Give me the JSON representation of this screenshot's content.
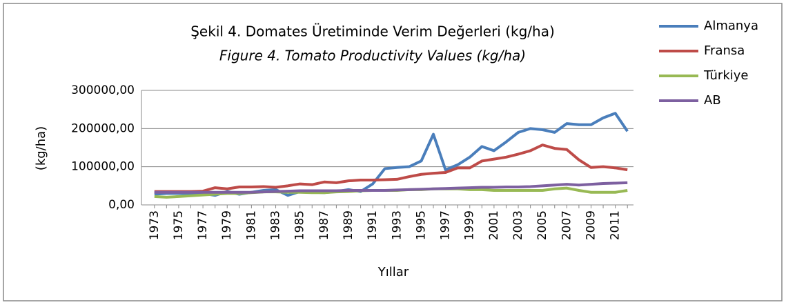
{
  "chart_data": {
    "type": "line",
    "title": "Şekil 4. Domates Üretiminde Verim Değerleri (kg/ha)",
    "subtitle": "Figure 4. Tomato Productivity Values (kg/ha)",
    "x_label": "Yıllar",
    "y_label": "(kg/ha)",
    "categories": [
      "1973",
      null,
      "1975",
      null,
      "1977",
      null,
      "1979",
      null,
      "1981",
      null,
      "1983",
      null,
      "1985",
      null,
      "1987",
      null,
      "1989",
      null,
      "1991",
      null,
      "1993",
      null,
      "1995",
      null,
      "1997",
      null,
      "1999",
      null,
      "2001",
      null,
      "2003",
      null,
      "2005",
      null,
      "2007",
      null,
      "2009",
      null,
      "2011",
      null
    ],
    "series": [
      {
        "name": "Almanya",
        "color": "#4a7ebb",
        "values": [
          28000,
          30000,
          30000,
          30000,
          30000,
          25000,
          35000,
          28000,
          33000,
          38000,
          40000,
          25000,
          35000,
          33000,
          32000,
          35000,
          40000,
          35000,
          55000,
          95000,
          98000,
          100000,
          115000,
          185000,
          92000,
          105000,
          125000,
          153000,
          142000,
          165000,
          190000,
          200000,
          197000,
          190000,
          213000,
          210000,
          210000,
          228000,
          240000,
          193000
        ]
      },
      {
        "name": "Fransa",
        "color": "#be4b48",
        "values": [
          35000,
          35000,
          35000,
          35000,
          36000,
          45000,
          42000,
          47000,
          47000,
          48000,
          46000,
          50000,
          55000,
          53000,
          60000,
          58000,
          63000,
          65000,
          65000,
          66000,
          67000,
          74000,
          80000,
          83000,
          85000,
          97000,
          97000,
          115000,
          120000,
          125000,
          133000,
          142000,
          157000,
          148000,
          145000,
          118000,
          98000,
          100000,
          97000,
          92000
        ]
      },
      {
        "name": "Türkiye",
        "color": "#98b954",
        "values": [
          22000,
          20000,
          22000,
          24000,
          26000,
          28000,
          30000,
          30000,
          32000,
          34000,
          34000,
          33000,
          33000,
          32000,
          32000,
          34000,
          35000,
          37000,
          38000,
          38000,
          38000,
          40000,
          40000,
          42000,
          42000,
          42000,
          40000,
          40000,
          38000,
          38000,
          38000,
          38000,
          38000,
          42000,
          44000,
          38000,
          33000,
          33000,
          33000,
          38000
        ]
      },
      {
        "name": "AB",
        "color": "#7d60a0",
        "values": [
          33000,
          33000,
          33000,
          33000,
          33000,
          33000,
          33000,
          33000,
          33000,
          34000,
          35000,
          36000,
          37000,
          37000,
          37000,
          37000,
          38000,
          38000,
          38000,
          38000,
          39000,
          40000,
          41000,
          42000,
          43000,
          44000,
          45000,
          46000,
          46000,
          47000,
          47000,
          48000,
          50000,
          52000,
          54000,
          52000,
          54000,
          56000,
          57000,
          58000
        ]
      }
    ],
    "ylim": [
      0,
      300000
    ],
    "yticks": [
      {
        "value": 0,
        "label": "0,00"
      },
      {
        "value": 100000,
        "label": "100000,00"
      },
      {
        "value": 200000,
        "label": "200000,00"
      },
      {
        "value": 300000,
        "label": "300000,00"
      }
    ],
    "grid": true,
    "legend": "right"
  }
}
